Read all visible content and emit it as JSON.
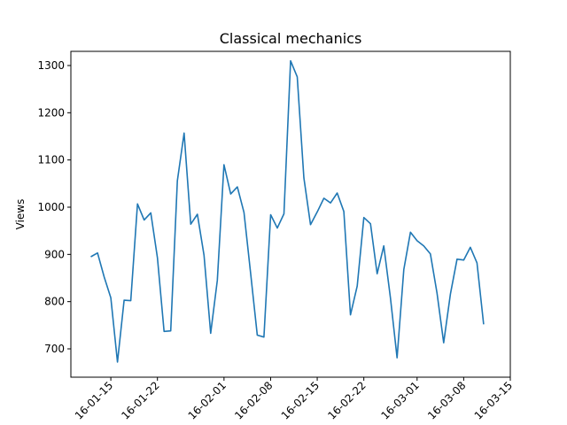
{
  "chart_data": {
    "type": "line",
    "title": "Classical mechanics",
    "xlabel": "",
    "ylabel": "Views",
    "ylim": [
      640,
      1330
    ],
    "xlim": [
      "2016-01-09",
      "2016-03-15"
    ],
    "grid": false,
    "color": "#1f77b4",
    "yticks": [
      700,
      800,
      900,
      1000,
      1100,
      1200,
      1300
    ],
    "xticks": [
      "2016-01-15",
      "2016-01-22",
      "2016-02-01",
      "2016-02-08",
      "2016-02-15",
      "2016-02-22",
      "2016-03-01",
      "2016-03-08",
      "2016-03-15"
    ],
    "xtick_labels": [
      "16-01-15",
      "16-01-22",
      "16-02-01",
      "16-02-08",
      "16-02-15",
      "16-02-22",
      "16-03-01",
      "16-03-08",
      "16-03-15"
    ],
    "series": [
      {
        "x": [
          "2016-01-12",
          "2016-01-13",
          "2016-01-14",
          "2016-01-15",
          "2016-01-16",
          "2016-01-17",
          "2016-01-18",
          "2016-01-19",
          "2016-01-20",
          "2016-01-21",
          "2016-01-22",
          "2016-01-23",
          "2016-01-24",
          "2016-01-25",
          "2016-01-26",
          "2016-01-27",
          "2016-01-28",
          "2016-01-29",
          "2016-01-30",
          "2016-01-31",
          "2016-02-01",
          "2016-02-02",
          "2016-02-03",
          "2016-02-04",
          "2016-02-05",
          "2016-02-06",
          "2016-02-07",
          "2016-02-08",
          "2016-02-09",
          "2016-02-10",
          "2016-02-11",
          "2016-02-12",
          "2016-02-13",
          "2016-02-14",
          "2016-02-15",
          "2016-02-16",
          "2016-02-17",
          "2016-02-18",
          "2016-02-19",
          "2016-02-20",
          "2016-02-21",
          "2016-02-22",
          "2016-02-23",
          "2016-02-24",
          "2016-02-25",
          "2016-02-26",
          "2016-02-27",
          "2016-02-28",
          "2016-02-29",
          "2016-03-01",
          "2016-03-02",
          "2016-03-03",
          "2016-03-04",
          "2016-03-05",
          "2016-03-06",
          "2016-03-07",
          "2016-03-08",
          "2016-03-09",
          "2016-03-10",
          "2016-03-11"
        ],
        "values": [
          895,
          903,
          852,
          808,
          672,
          803,
          802,
          1007,
          973,
          988,
          893,
          737,
          738,
          1056,
          1157,
          964,
          985,
          898,
          733,
          845,
          1090,
          1028,
          1043,
          989,
          860,
          729,
          725,
          984,
          956,
          986,
          1310,
          1276,
          1062,
          963,
          990,
          1019,
          1009,
          1030,
          991,
          772,
          833,
          978,
          965,
          859,
          918,
          808,
          681,
          868,
          947,
          929,
          918,
          901,
          818,
          713,
          816,
          890,
          888,
          915,
          882,
          752
        ]
      }
    ]
  }
}
